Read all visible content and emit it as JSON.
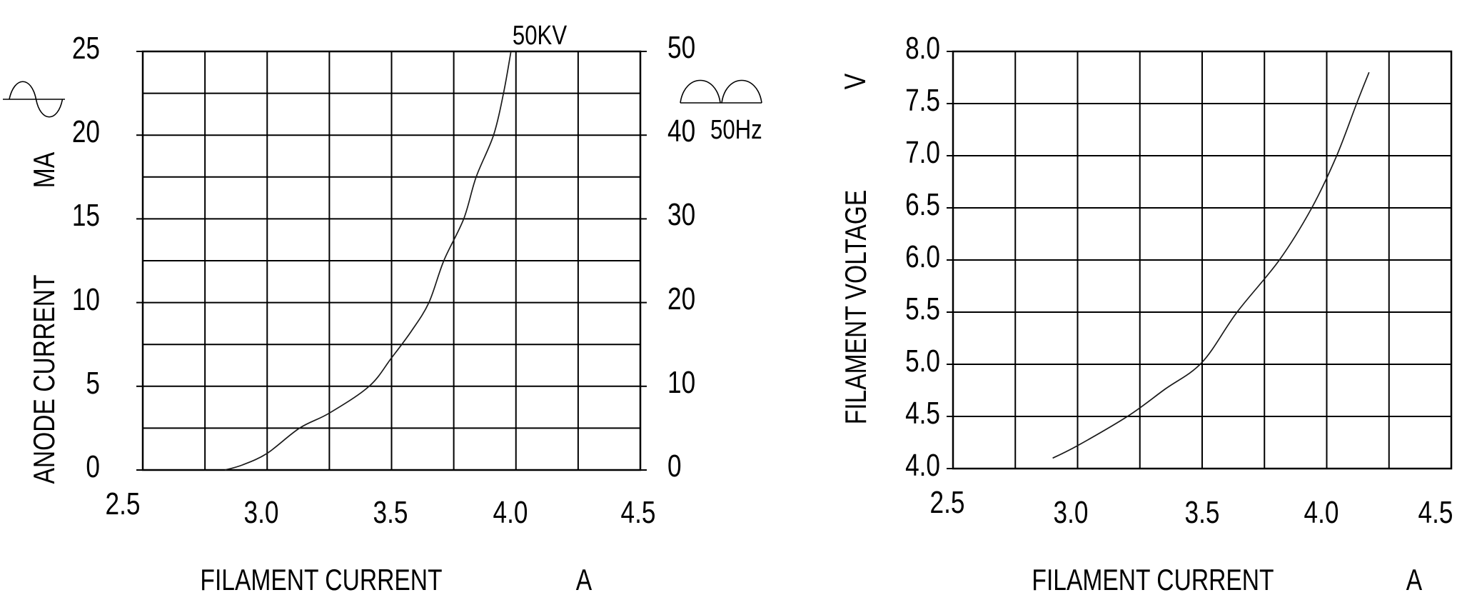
{
  "page": {
    "background": "#ffffff",
    "ink_color": "#000000",
    "curve_color": "#1a1a1a"
  },
  "chart_data": [
    {
      "type": "line",
      "title": "",
      "xlabel": "FILAMENT CURRENT",
      "xunit": "A",
      "ylabel": "ANODE CURRENT",
      "yunit": "MA",
      "xlim": [
        2.5,
        4.5
      ],
      "ylim": [
        0,
        25
      ],
      "x_grid_step": 0.25,
      "y_grid_step": 2.5,
      "grid": true,
      "x_ticks": [
        "2.5",
        "3.0",
        "3.5",
        "4.0",
        "4.5"
      ],
      "y_ticks": [
        "25",
        "20",
        "15",
        "10",
        "5",
        "0"
      ],
      "right_axis": {
        "range": [
          0,
          50
        ],
        "labels": [
          "50",
          "40",
          "30",
          "20",
          "10",
          "0"
        ],
        "note": "50Hz"
      },
      "icons": [
        "ac-sine-wave-icon",
        "full-wave-rectified-icon"
      ],
      "series": [
        {
          "name": "50KV",
          "points": [
            [
              2.83,
              0
            ],
            [
              2.9,
              0.3
            ],
            [
              3.0,
              1.0
            ],
            [
              3.13,
              2.5
            ],
            [
              3.25,
              3.4
            ],
            [
              3.41,
              5.0
            ],
            [
              3.5,
              6.7
            ],
            [
              3.58,
              8.3
            ],
            [
              3.65,
              10.0
            ],
            [
              3.71,
              12.5
            ],
            [
              3.79,
              15.0
            ],
            [
              3.84,
              17.5
            ],
            [
              3.91,
              20.0
            ],
            [
              3.95,
              22.5
            ],
            [
              3.98,
              25.0
            ]
          ]
        }
      ]
    },
    {
      "type": "line",
      "title": "",
      "xlabel": "FILAMENT CURRENT",
      "xunit": "A",
      "ylabel": "FILAMENT VOLTAGE",
      "yunit": "V",
      "xlim": [
        2.5,
        4.5
      ],
      "ylim": [
        4.0,
        8.0
      ],
      "x_grid_step": 0.25,
      "y_grid_step": 0.5,
      "grid": true,
      "x_ticks": [
        "2.5",
        "3.0",
        "3.5",
        "4.0",
        "4.5"
      ],
      "y_ticks": [
        "8.0",
        "7.5",
        "7.0",
        "6.5",
        "6.0",
        "5.5",
        "5.0",
        "4.5",
        "4.0"
      ],
      "series": [
        {
          "name": "",
          "points": [
            [
              2.9,
              4.1
            ],
            [
              3.0,
              4.22
            ],
            [
              3.2,
              4.5
            ],
            [
              3.35,
              4.76
            ],
            [
              3.5,
              5.02
            ],
            [
              3.64,
              5.5
            ],
            [
              3.81,
              6.0
            ],
            [
              3.94,
              6.5
            ],
            [
              4.04,
              7.0
            ],
            [
              4.12,
              7.5
            ],
            [
              4.17,
              7.8
            ]
          ]
        }
      ]
    }
  ]
}
